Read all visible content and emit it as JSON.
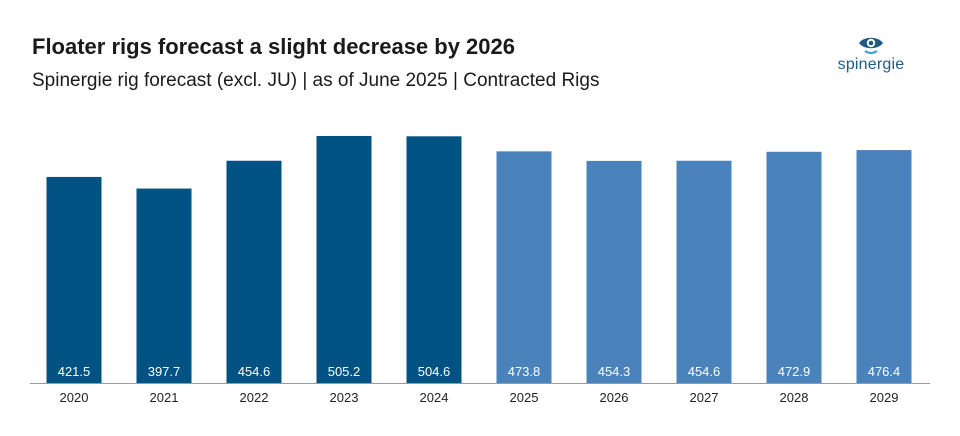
{
  "header": {
    "title": "Floater rigs forecast a slight decrease by 2026",
    "subtitle": "Spinergie rig forecast (excl. JU) | as of June 2025 | Contracted Rigs"
  },
  "logo": {
    "text": "spinergie",
    "icon": "eye-icon"
  },
  "colors": {
    "actual": "#005282",
    "forecast": "#4a83bb",
    "label": "#ffffff",
    "axis": "#9a9a9a"
  },
  "chart_data": {
    "type": "bar",
    "categories": [
      "2020",
      "2021",
      "2022",
      "2023",
      "2024",
      "2025",
      "2026",
      "2027",
      "2028",
      "2029"
    ],
    "values": [
      421.5,
      397.7,
      454.6,
      505.2,
      504.6,
      473.8,
      454.3,
      454.6,
      472.9,
      476.4
    ],
    "value_labels": [
      "421.5",
      "397.7",
      "454.6",
      "505.2",
      "504.6",
      "473.8",
      "454.3",
      "454.6",
      "472.9",
      "476.4"
    ],
    "bar_colors": [
      "#005282",
      "#005282",
      "#005282",
      "#005282",
      "#005282",
      "#4a83bb",
      "#4a83bb",
      "#4a83bb",
      "#4a83bb",
      "#4a83bb"
    ],
    "ylim": [
      0,
      505.2
    ],
    "grid": false,
    "legend": "none"
  }
}
